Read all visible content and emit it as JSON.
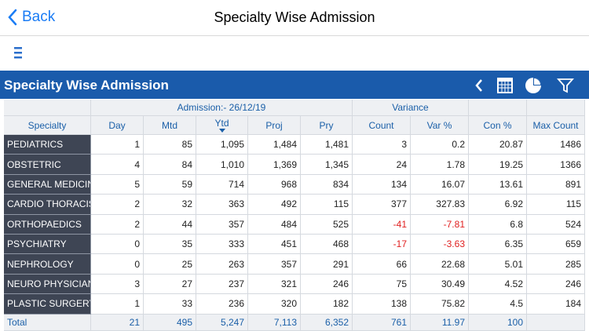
{
  "nav": {
    "back": "Back",
    "title": "Specialty Wise Admission"
  },
  "panel": {
    "title": "Specialty Wise Admission"
  },
  "table": {
    "group_headers": [
      "Admission:- 26/12/19",
      "Variance"
    ],
    "columns": [
      "Specialty",
      "Day",
      "Mtd",
      "Ytd",
      "Proj",
      "Pry",
      "Count",
      "Var %",
      "Con %",
      "Max Count"
    ],
    "rows": [
      [
        "PEDIATRICS",
        "1",
        "85",
        "1,095",
        "1,484",
        "1,481",
        "3",
        "0.2",
        "20.87",
        "1486"
      ],
      [
        "OBSTETRIC",
        "4",
        "84",
        "1,010",
        "1,369",
        "1,345",
        "24",
        "1.78",
        "19.25",
        "1366"
      ],
      [
        "GENERAL MEDICINE",
        "5",
        "59",
        "714",
        "968",
        "834",
        "134",
        "16.07",
        "13.61",
        "891"
      ],
      [
        "CARDIO THORACIS",
        "2",
        "32",
        "363",
        "492",
        "115",
        "377",
        "327.83",
        "6.92",
        "115"
      ],
      [
        "ORTHOPAEDICS",
        "2",
        "44",
        "357",
        "484",
        "525",
        "-41",
        "-7.81",
        "6.8",
        "524"
      ],
      [
        "PSYCHIATRY",
        "0",
        "35",
        "333",
        "451",
        "468",
        "-17",
        "-3.63",
        "6.35",
        "659"
      ],
      [
        "NEPHROLOGY",
        "0",
        "25",
        "263",
        "357",
        "291",
        "66",
        "22.68",
        "5.01",
        "285"
      ],
      [
        "NEURO PHYSICIAN",
        "3",
        "27",
        "237",
        "321",
        "246",
        "75",
        "30.49",
        "4.52",
        "246"
      ],
      [
        "PLASTIC SURGERY",
        "1",
        "33",
        "236",
        "320",
        "182",
        "138",
        "75.82",
        "4.5",
        "184"
      ]
    ],
    "total": [
      "Total",
      "21",
      "495",
      "5,247",
      "7,113",
      "6,352",
      "761",
      "11.97",
      "100"
    ]
  }
}
